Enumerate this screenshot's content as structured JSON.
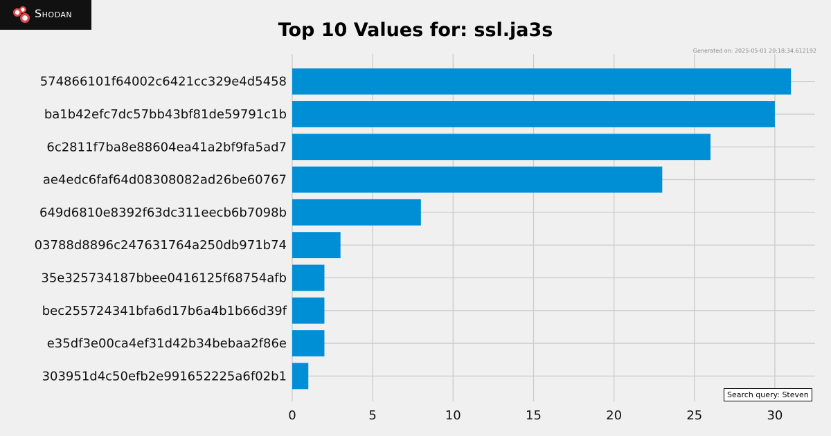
{
  "brand": {
    "name": "Shodan",
    "logo_icon": "shodan-logo-icon"
  },
  "generated": "Generated on: 2025-05-01 20:18:34.612192",
  "search_query": "Search query: Steven",
  "chart_data": {
    "type": "bar",
    "orientation": "horizontal",
    "title": "Top 10 Values for: ssl.ja3s",
    "categories": [
      "574866101f64002c6421cc329e4d5458",
      "ba1b42efc7dc57bb43bf81de59791c1b",
      "6c2811f7ba8e88604ea41a2bf9fa5ad7",
      "ae4edc6faf64d08308082ad26be60767",
      "649d6810e8392f63dc311eecb6b7098b",
      "03788d8896c247631764a250db971b74",
      "35e325734187bbee0416125f68754afb",
      "bec255724341bfa6d17b6a4b1b66d39f",
      "e35df3e00ca4ef31d42b34bebaa2f86e",
      "303951d4c50efb2e991652225a6f02b1"
    ],
    "values": [
      31,
      30,
      26,
      23,
      8,
      3,
      2,
      2,
      2,
      1
    ],
    "xticks": [
      0,
      5,
      10,
      15,
      20,
      25,
      30
    ],
    "xlim": [
      0,
      32.5
    ],
    "xlabel": "",
    "ylabel": "",
    "grid": true,
    "bar_color": "#008fd5",
    "grid_color": "#cbcbcb"
  }
}
